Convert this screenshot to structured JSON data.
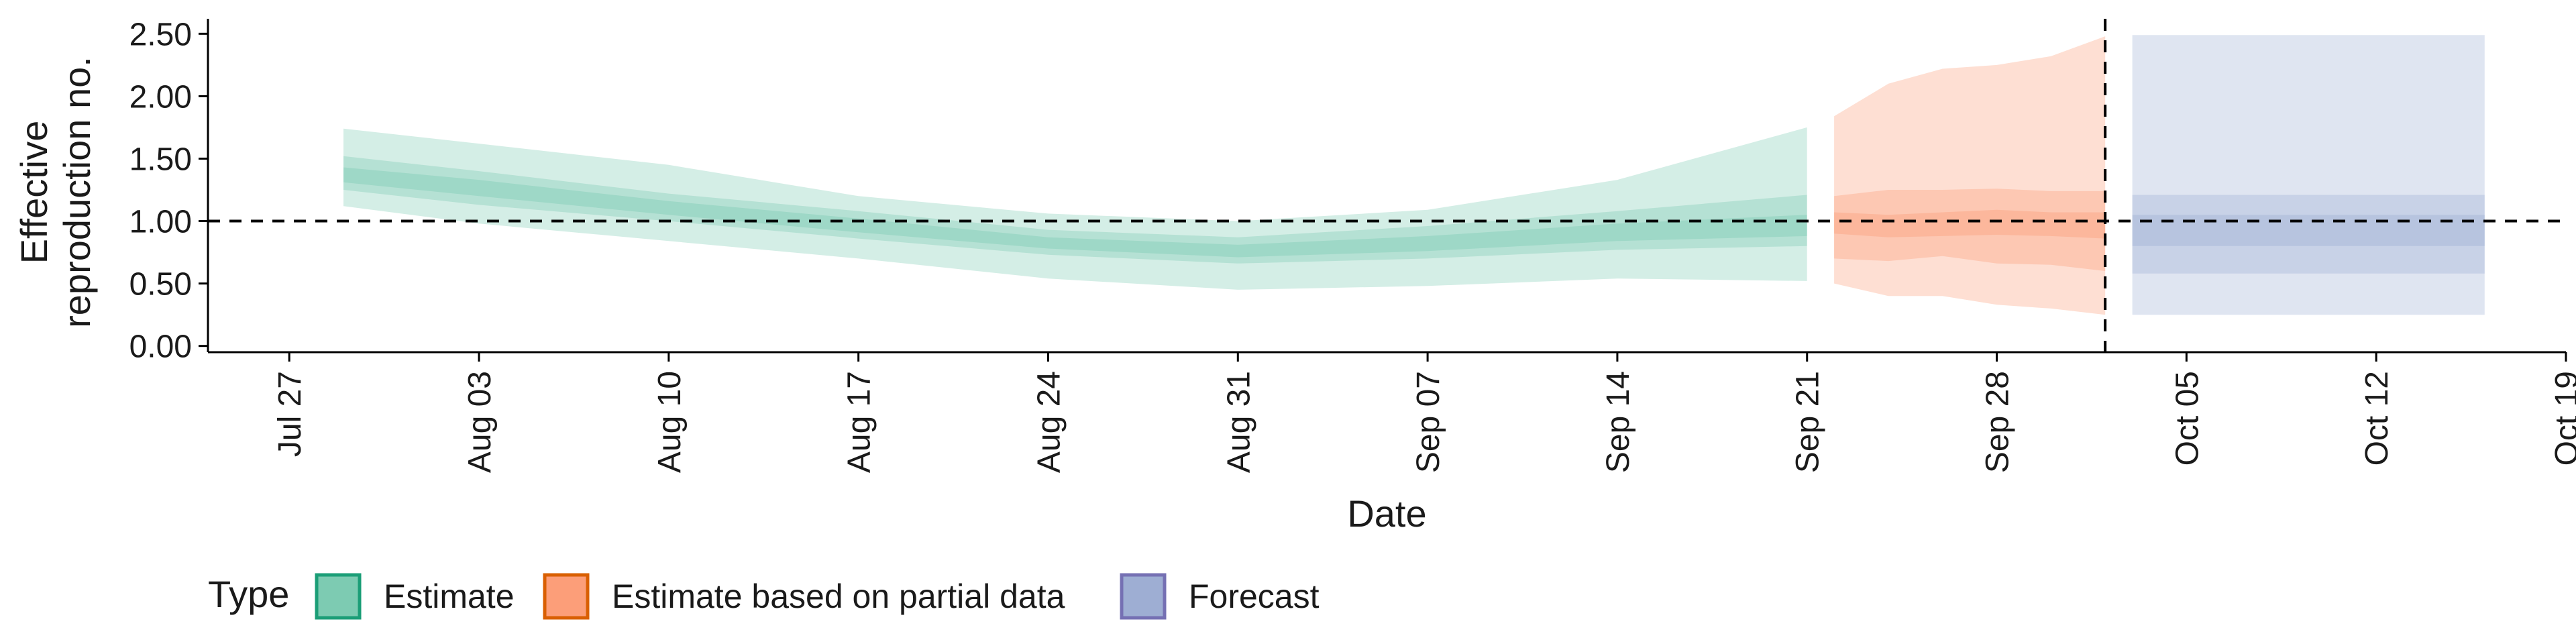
{
  "chart_data": {
    "type": "area",
    "xlabel": "Date",
    "ylabel": [
      "Effective",
      "reproduction no."
    ],
    "ylim": [
      -0.05,
      2.62
    ],
    "yticks": [
      0.0,
      0.5,
      1.0,
      1.5,
      2.0,
      2.5
    ],
    "ytick_labels": [
      "0.00",
      "0.50",
      "1.00",
      "1.50",
      "2.00",
      "2.50"
    ],
    "xlim": [
      "2020-07-24",
      "2020-10-19"
    ],
    "xticks": [
      "2020-07-27",
      "2020-08-03",
      "2020-08-10",
      "2020-08-17",
      "2020-08-24",
      "2020-08-31",
      "2020-09-07",
      "2020-09-14",
      "2020-09-21",
      "2020-09-28",
      "2020-10-05",
      "2020-10-12",
      "2020-10-19"
    ],
    "xtick_labels": [
      "Jul 27",
      "Aug 03",
      "Aug 10",
      "Aug 17",
      "Aug 24",
      "Aug 31",
      "Sep 07",
      "Sep 14",
      "Sep 21",
      "Sep 28",
      "Oct 05",
      "Oct 12",
      "Oct 19"
    ],
    "reference_hline": 1.0,
    "reference_vline": "2020-10-02",
    "grid": false,
    "legend": {
      "title": "Type",
      "position": "bottom-left",
      "entries": [
        "Estimate",
        "Estimate based on partial data",
        "Forecast"
      ]
    },
    "series": [
      {
        "name": "Estimate",
        "color": "#1b9e77",
        "fill_color": "#66c2a5",
        "x": [
          "2020-07-29",
          "2020-08-03",
          "2020-08-10",
          "2020-08-17",
          "2020-08-24",
          "2020-08-31",
          "2020-09-07",
          "2020-09-14",
          "2020-09-21"
        ],
        "median": [
          1.37,
          1.26,
          1.1,
          0.96,
          0.82,
          0.76,
          0.82,
          0.91,
          1.0
        ],
        "lower_20": [
          1.31,
          1.2,
          1.05,
          0.91,
          0.78,
          0.71,
          0.76,
          0.84,
          0.88
        ],
        "upper_20": [
          1.43,
          1.33,
          1.16,
          1.02,
          0.87,
          0.81,
          0.88,
          0.98,
          1.05
        ],
        "lower_50": [
          1.25,
          1.13,
          1.0,
          0.86,
          0.73,
          0.66,
          0.7,
          0.77,
          0.8
        ],
        "upper_50": [
          1.52,
          1.4,
          1.22,
          1.08,
          0.93,
          0.87,
          0.96,
          1.08,
          1.21
        ],
        "lower_90": [
          1.12,
          0.98,
          0.84,
          0.7,
          0.54,
          0.45,
          0.48,
          0.54,
          0.52
        ],
        "upper_90": [
          1.74,
          1.62,
          1.45,
          1.2,
          1.06,
          1.0,
          1.09,
          1.33,
          1.75
        ]
      },
      {
        "name": "Estimate based on partial data",
        "color": "#d95f02",
        "fill_color": "#fc8d62",
        "x": [
          "2020-09-22",
          "2020-09-24",
          "2020-09-26",
          "2020-09-28",
          "2020-09-30",
          "2020-10-02"
        ],
        "median": [
          0.98,
          0.95,
          0.97,
          0.99,
          0.98,
          0.97
        ],
        "lower_20": [
          0.9,
          0.87,
          0.88,
          0.89,
          0.88,
          0.86
        ],
        "upper_20": [
          1.07,
          1.05,
          1.07,
          1.09,
          1.07,
          1.07
        ],
        "lower_50": [
          0.7,
          0.68,
          0.72,
          0.66,
          0.65,
          0.6
        ],
        "upper_50": [
          1.2,
          1.25,
          1.25,
          1.26,
          1.24,
          1.24
        ],
        "lower_90": [
          0.5,
          0.4,
          0.4,
          0.33,
          0.3,
          0.25
        ],
        "upper_90": [
          1.84,
          2.1,
          2.22,
          2.25,
          2.32,
          2.48
        ]
      },
      {
        "name": "Forecast",
        "color": "#7570b3",
        "fill_color": "#8da0cb",
        "x": [
          "2020-10-03",
          "2020-10-16"
        ],
        "median": [
          0.98,
          0.98
        ],
        "lower_20": [
          0.8,
          0.8
        ],
        "upper_20": [
          1.05,
          1.05
        ],
        "lower_50": [
          0.58,
          0.58
        ],
        "upper_50": [
          1.21,
          1.21
        ],
        "lower_90": [
          0.25,
          0.25
        ],
        "upper_90": [
          2.49,
          2.49
        ]
      }
    ]
  }
}
